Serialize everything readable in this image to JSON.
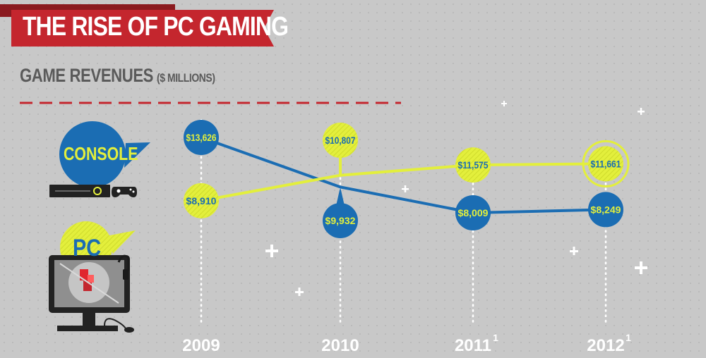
{
  "title": "THE RISE OF PC GAMING",
  "subtitle": "GAME REVENUES",
  "subtitle_unit": "($ MILLIONS)",
  "console_label": "CONSOLE",
  "pc_label": "PC",
  "colors": {
    "console": "#1b6db3",
    "pc": "#e3ef3c",
    "console_text": "#e3ef3c",
    "pc_text": "#1b6db3",
    "banner": "#c4262e",
    "banner_dark": "#8a1a1f"
  },
  "chart_data": {
    "type": "line",
    "x": [
      "2009",
      "2010",
      "2011",
      "2012"
    ],
    "x_superscripts": [
      "",
      "",
      "1",
      "1"
    ],
    "series": [
      {
        "name": "CONSOLE",
        "values": [
          13626,
          9932,
          8009,
          8249
        ],
        "labels": [
          "$13,626",
          "$9,932",
          "$8,009",
          "$8,249"
        ]
      },
      {
        "name": "PC",
        "values": [
          8910,
          10807,
          11575,
          11661
        ],
        "labels": [
          "$8,910",
          "$10,807",
          "$11,575",
          "$11,661"
        ]
      }
    ],
    "ylim": [
      7000,
      15000
    ],
    "grid": false
  }
}
